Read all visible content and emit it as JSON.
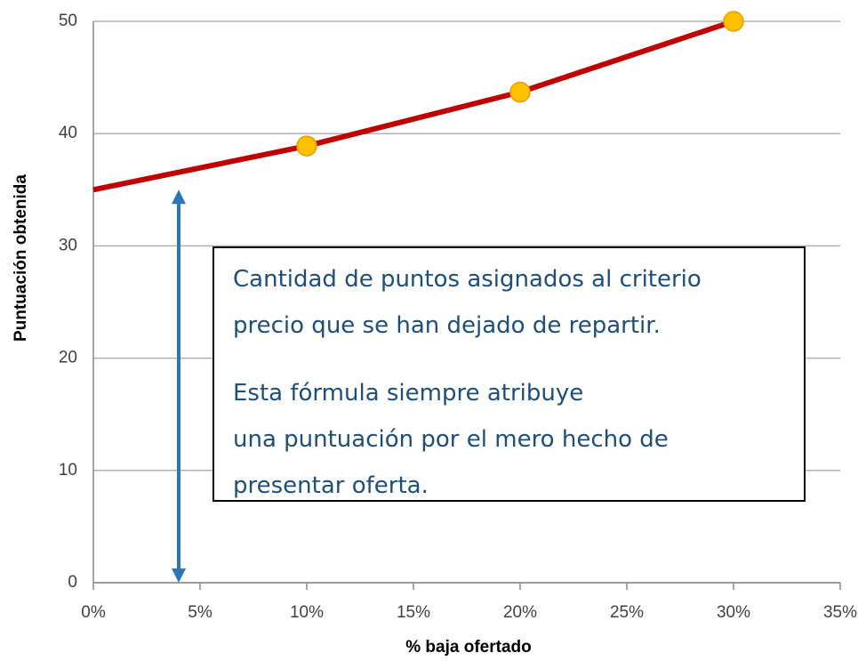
{
  "chart_data": {
    "type": "line",
    "x_label": "% baja ofertado",
    "y_label": "Puntuación obtenida",
    "xlim": [
      0,
      35
    ],
    "xticks": [
      {
        "value": 0,
        "label": "0%"
      },
      {
        "value": 5,
        "label": "5%"
      },
      {
        "value": 10,
        "label": "10%"
      },
      {
        "value": 15,
        "label": "15%"
      },
      {
        "value": 20,
        "label": "20%"
      },
      {
        "value": 25,
        "label": "25%"
      },
      {
        "value": 30,
        "label": "30%"
      },
      {
        "value": 35,
        "label": "35%"
      }
    ],
    "ylim": [
      0,
      50
    ],
    "yticks": [
      0,
      10,
      20,
      30,
      40,
      50
    ],
    "grid": true,
    "series": [
      {
        "color": "#c00000",
        "x": [
          0,
          10,
          20,
          30
        ],
        "values": [
          35,
          38.9,
          43.7,
          50
        ]
      },
      {
        "color": "#ffc000",
        "x": [
          10,
          20,
          30
        ],
        "values": [
          38.9,
          43.7,
          50
        ],
        "marker": true
      }
    ],
    "arrow": {
      "x": 4,
      "from": 0,
      "to": 35,
      "color": "#2e75b6"
    },
    "annotation": [
      "Cantidad de puntos asignados al criterio precio que se han dejado de repartir.",
      "Esta fórmula siempre atribuye una puntuación por el mero hecho de presentar oferta."
    ]
  }
}
